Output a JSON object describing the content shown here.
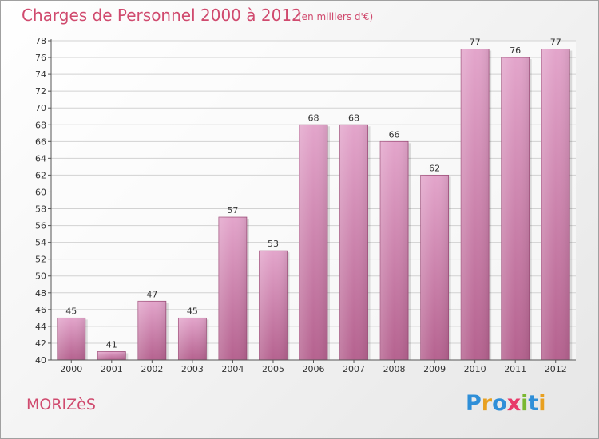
{
  "header": {
    "title": "Charges de Personnel 2000 à 2012",
    "subtitle": "(en milliers d'€)"
  },
  "footer": {
    "town": "MORIZèS",
    "logo": {
      "text": "Proxiti",
      "letters": [
        {
          "char": "P",
          "color": "#2f8fd8"
        },
        {
          "char": "r",
          "color": "#e8a020"
        },
        {
          "char": "o",
          "color": "#2f8fd8"
        },
        {
          "char": "x",
          "color": "#e83a6a"
        },
        {
          "char": "i",
          "color": "#7ab830"
        },
        {
          "char": "t",
          "color": "#2f8fd8"
        },
        {
          "char": "i",
          "color": "#e8a020"
        }
      ]
    }
  },
  "colors": {
    "accent": "#d04a6e",
    "bar_top": "#e3a5cb",
    "bar_bottom": "#b5628f",
    "grid": "#d2d2d2"
  },
  "chart_data": {
    "type": "bar",
    "title": "Charges de Personnel 2000 à 2012",
    "subtitle": "(en milliers d'€)",
    "categories": [
      "2000",
      "2001",
      "2002",
      "2003",
      "2004",
      "2005",
      "2006",
      "2007",
      "2008",
      "2009",
      "2010",
      "2011",
      "2012"
    ],
    "values": [
      45,
      41,
      47,
      45,
      57,
      53,
      68,
      68,
      66,
      62,
      77,
      76,
      77
    ],
    "ylim": [
      40,
      78
    ],
    "yticks": [
      40,
      42,
      44,
      46,
      48,
      50,
      52,
      54,
      56,
      58,
      60,
      62,
      64,
      66,
      68,
      70,
      72,
      74,
      76,
      78
    ],
    "grid": true,
    "data_labels": true
  }
}
